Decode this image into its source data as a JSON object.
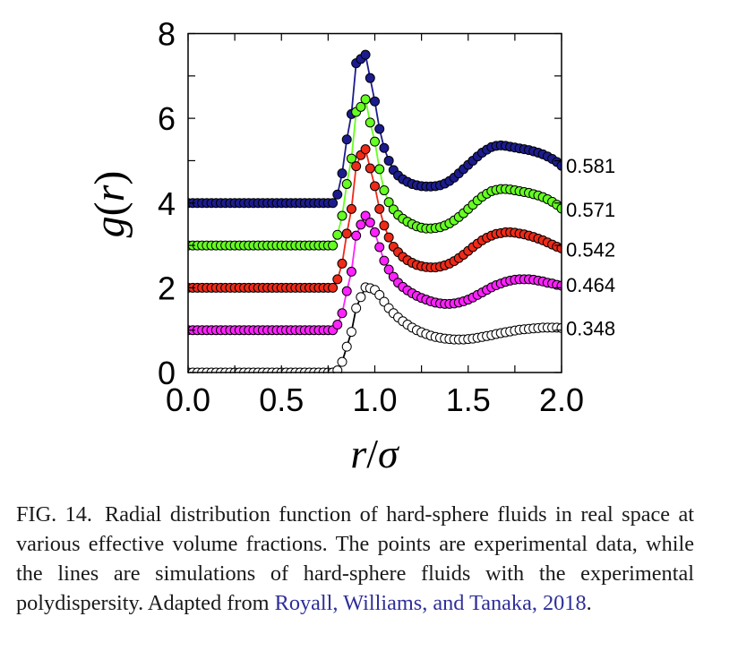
{
  "chart_data": {
    "type": "scatter",
    "xlabel_parts": [
      "r",
      "/",
      "σ"
    ],
    "ylabel_parts": [
      "g",
      "(",
      "r",
      ")"
    ],
    "xlim": [
      0.0,
      2.0
    ],
    "ylim": [
      0,
      8
    ],
    "xticks": [
      "0.0",
      "0.5",
      "1.0",
      "1.5",
      "2.0"
    ],
    "yticks": [
      "0",
      "2",
      "4",
      "6",
      "8"
    ],
    "grid": false,
    "note_offsets": "curves vertically offset by 0,1,2,3,4",
    "x": [
      0.0,
      0.025,
      0.05,
      0.075,
      0.1,
      0.125,
      0.15,
      0.175,
      0.2,
      0.225,
      0.25,
      0.275,
      0.3,
      0.325,
      0.35,
      0.375,
      0.4,
      0.425,
      0.45,
      0.475,
      0.5,
      0.525,
      0.55,
      0.575,
      0.6,
      0.625,
      0.65,
      0.675,
      0.7,
      0.725,
      0.75,
      0.775,
      0.8,
      0.825,
      0.85,
      0.875,
      0.9,
      0.925,
      0.95,
      0.975,
      1.0,
      1.025,
      1.05,
      1.075,
      1.1,
      1.125,
      1.15,
      1.175,
      1.2,
      1.225,
      1.25,
      1.275,
      1.3,
      1.325,
      1.35,
      1.375,
      1.4,
      1.425,
      1.45,
      1.475,
      1.5,
      1.525,
      1.55,
      1.575,
      1.6,
      1.625,
      1.65,
      1.675,
      1.7,
      1.725,
      1.75,
      1.775,
      1.8,
      1.825,
      1.85,
      1.875,
      1.9,
      1.925,
      1.95,
      1.975,
      2.0
    ],
    "series": [
      {
        "name": "0.581",
        "offset": 4,
        "color": "#1c1c8e",
        "values": [
          0,
          0,
          0,
          0,
          0,
          0,
          0,
          0,
          0,
          0,
          0,
          0,
          0,
          0,
          0,
          0,
          0,
          0,
          0,
          0,
          0,
          0,
          0,
          0,
          0,
          0,
          0,
          0,
          0,
          0,
          0,
          0,
          0.2,
          0.7,
          1.5,
          2.1,
          3.3,
          3.4,
          3.5,
          2.95,
          2.4,
          1.75,
          1.3,
          1.0,
          0.78,
          0.65,
          0.56,
          0.5,
          0.45,
          0.42,
          0.4,
          0.39,
          0.39,
          0.4,
          0.42,
          0.46,
          0.52,
          0.6,
          0.7,
          0.8,
          0.9,
          1.0,
          1.1,
          1.19,
          1.26,
          1.32,
          1.35,
          1.36,
          1.35,
          1.33,
          1.31,
          1.29,
          1.27,
          1.25,
          1.22,
          1.19,
          1.15,
          1.1,
          1.04,
          0.97,
          0.88
        ]
      },
      {
        "name": "0.571",
        "offset": 3,
        "color": "#66ff22",
        "values": [
          0,
          0,
          0,
          0,
          0,
          0,
          0,
          0,
          0,
          0,
          0,
          0,
          0,
          0,
          0,
          0,
          0,
          0,
          0,
          0,
          0,
          0,
          0,
          0,
          0,
          0,
          0,
          0,
          0,
          0,
          0,
          0,
          0.25,
          0.7,
          1.45,
          2.05,
          3.15,
          3.27,
          3.45,
          2.9,
          2.45,
          1.8,
          1.3,
          1.02,
          0.85,
          0.72,
          0.63,
          0.56,
          0.5,
          0.45,
          0.42,
          0.4,
          0.4,
          0.41,
          0.43,
          0.47,
          0.52,
          0.59,
          0.67,
          0.76,
          0.86,
          0.96,
          1.06,
          1.15,
          1.22,
          1.28,
          1.31,
          1.33,
          1.33,
          1.32,
          1.3,
          1.28,
          1.26,
          1.24,
          1.21,
          1.18,
          1.14,
          1.09,
          1.03,
          0.96,
          0.87
        ]
      },
      {
        "name": "0.542",
        "offset": 2,
        "color": "#ee2a18",
        "values": [
          0,
          0,
          0,
          0,
          0,
          0,
          0,
          0,
          0,
          0,
          0,
          0,
          0,
          0,
          0,
          0,
          0,
          0,
          0,
          0,
          0,
          0,
          0,
          0,
          0,
          0,
          0,
          0,
          0,
          0,
          0,
          0,
          0.2,
          0.57,
          1.28,
          1.86,
          2.87,
          3.13,
          3.27,
          2.82,
          2.4,
          1.86,
          1.47,
          1.19,
          0.97,
          0.84,
          0.73,
          0.65,
          0.59,
          0.54,
          0.51,
          0.49,
          0.48,
          0.48,
          0.5,
          0.53,
          0.57,
          0.63,
          0.7,
          0.78,
          0.87,
          0.96,
          1.04,
          1.12,
          1.18,
          1.23,
          1.27,
          1.29,
          1.31,
          1.31,
          1.3,
          1.28,
          1.26,
          1.23,
          1.2,
          1.16,
          1.12,
          1.07,
          1.02,
          0.97,
          0.93
        ]
      },
      {
        "name": "0.464",
        "offset": 1,
        "color": "#ff22ff",
        "values": [
          0,
          0,
          0,
          0,
          0,
          0,
          0,
          0,
          0,
          0,
          0,
          0,
          0,
          0,
          0,
          0,
          0,
          0,
          0,
          0,
          0,
          0,
          0,
          0,
          0,
          0,
          0,
          0,
          0,
          0,
          0,
          0,
          0.13,
          0.4,
          0.92,
          1.38,
          2.23,
          2.49,
          2.7,
          2.54,
          2.31,
          1.96,
          1.64,
          1.43,
          1.26,
          1.12,
          1.02,
          0.94,
          0.87,
          0.81,
          0.76,
          0.72,
          0.68,
          0.65,
          0.63,
          0.62,
          0.62,
          0.63,
          0.65,
          0.68,
          0.72,
          0.77,
          0.83,
          0.89,
          0.95,
          1.01,
          1.06,
          1.1,
          1.14,
          1.17,
          1.19,
          1.2,
          1.2,
          1.2,
          1.19,
          1.17,
          1.15,
          1.12,
          1.1,
          1.07,
          1.05
        ]
      },
      {
        "name": "0.348",
        "offset": 0,
        "color": "#ffffff",
        "values": [
          0,
          0,
          0,
          0,
          0,
          0,
          0,
          0,
          0,
          0,
          0,
          0,
          0,
          0,
          0,
          0,
          0,
          0,
          0,
          0,
          0,
          0,
          0,
          0,
          0,
          0,
          0,
          0,
          0,
          0,
          0,
          0,
          0.05,
          0.25,
          0.61,
          0.96,
          1.52,
          1.78,
          2.01,
          1.99,
          1.95,
          1.83,
          1.67,
          1.52,
          1.4,
          1.3,
          1.21,
          1.13,
          1.06,
          1.0,
          0.95,
          0.91,
          0.87,
          0.84,
          0.82,
          0.8,
          0.79,
          0.78,
          0.78,
          0.78,
          0.79,
          0.8,
          0.82,
          0.84,
          0.86,
          0.88,
          0.91,
          0.93,
          0.95,
          0.97,
          0.99,
          1.01,
          1.02,
          1.03,
          1.04,
          1.05,
          1.06,
          1.06,
          1.06,
          1.06,
          1.05
        ]
      }
    ],
    "line_colors": {
      "0.581": "#1c1c8e",
      "0.571": "#66ff22",
      "0.542": "#ee2a18",
      "0.464": "#ff22ff",
      "0.348": "#000000"
    }
  },
  "caption": {
    "label": "FIG. 14.",
    "text": "Radial distribution function of hard-sphere fluids in real space at various effective volume fractions. The points are experimental data, while the lines are simulations of hard-sphere fluids with the experimental polydispersity. Adapted from ",
    "citation": "Royall, Williams, and Tanaka, 2018",
    "end": ".",
    "citation_color": "#2e2e9a"
  }
}
